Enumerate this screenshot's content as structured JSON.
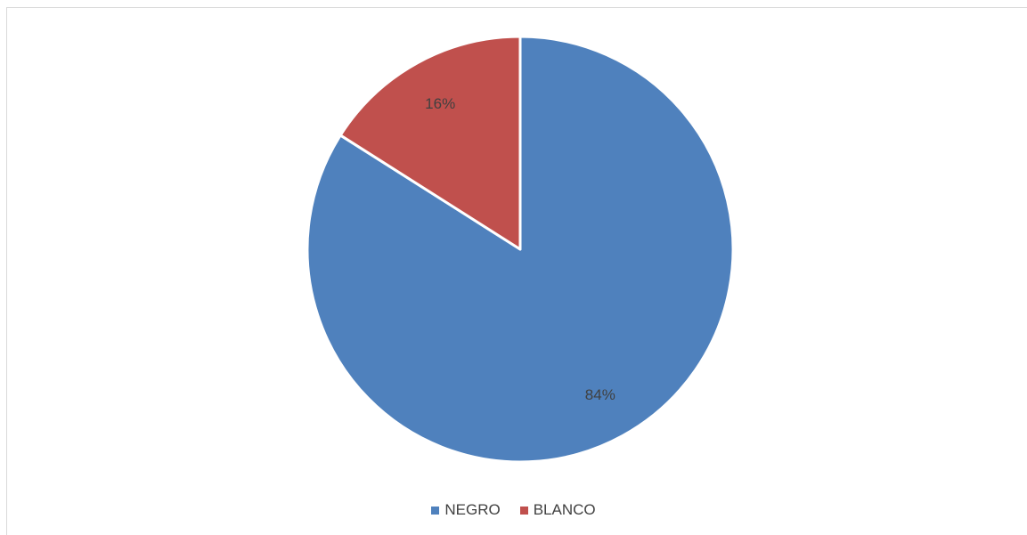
{
  "chart_data": {
    "type": "pie",
    "title": "",
    "slices": [
      {
        "label": "NEGRO",
        "value": 84,
        "display": "84%",
        "color": "#4f81bd"
      },
      {
        "label": "BLANCO",
        "value": 16,
        "display": "16%",
        "color": "#c0504d"
      }
    ],
    "start_angle_deg": 0,
    "direction": "clockwise",
    "legend_position": "bottom"
  }
}
